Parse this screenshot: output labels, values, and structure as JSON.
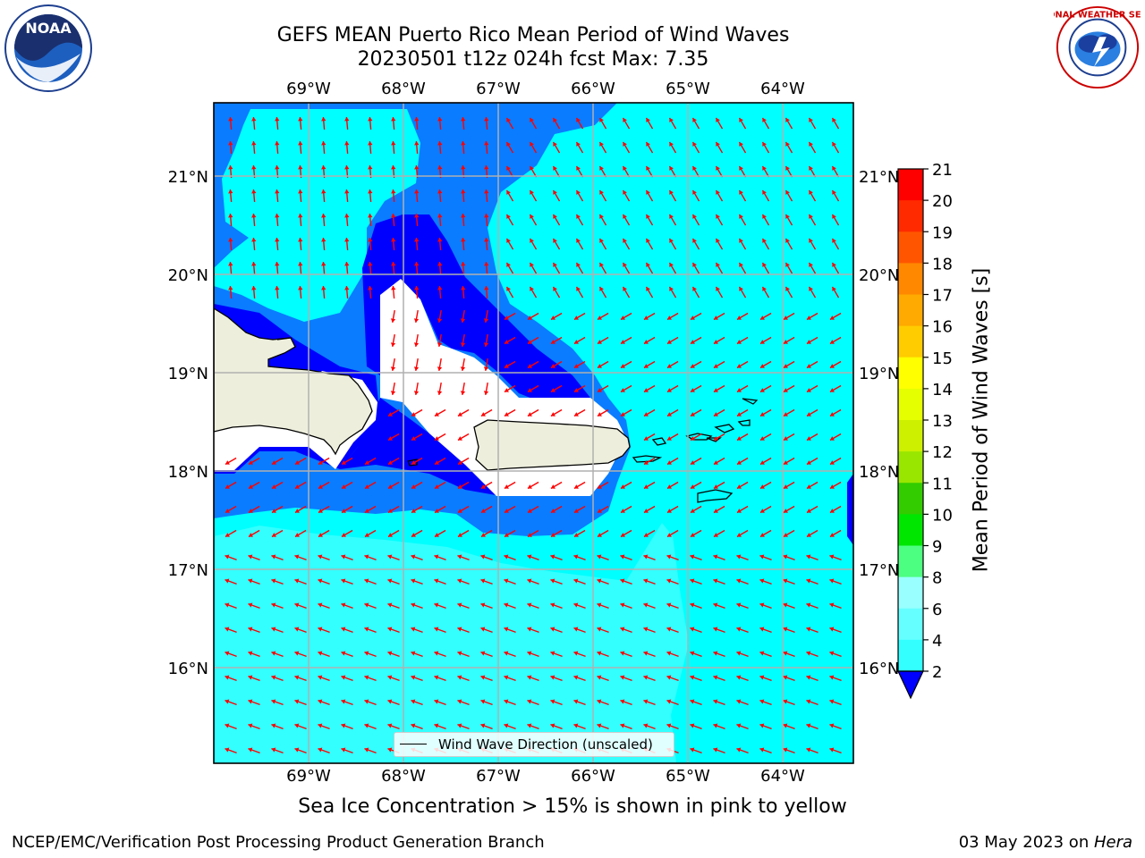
{
  "title": {
    "line1": "GEFS MEAN Puerto Rico Mean Period of Wind Waves",
    "line2": "20230501 t12z 024h fcst   Max: 7.35"
  },
  "logos": {
    "left": "NOAA",
    "right": "NATIONAL WEATHER SERVICE"
  },
  "map": {
    "lon_ticks": [
      "69°W",
      "68°W",
      "67°W",
      "66°W",
      "65°W",
      "64°W"
    ],
    "lat_ticks": [
      "21°N",
      "20°N",
      "19°N",
      "18°N",
      "17°N",
      "16°N"
    ],
    "legend_label": "Wind Wave Direction (unscaled)",
    "arrow_color": "#ff0000"
  },
  "colorbar": {
    "label": "Mean Period of Wind Waves [s]",
    "ticks": [
      "2",
      "4",
      "6",
      "8",
      "9",
      "10",
      "11",
      "12",
      "13",
      "14",
      "15",
      "16",
      "17",
      "18",
      "19",
      "20",
      "21"
    ],
    "colors": [
      "#0a7cff",
      "#00ffff",
      "#33ffff",
      "#66ffff",
      "#99ffff",
      "#4dff80",
      "#00e600",
      "#32cc00",
      "#99e600",
      "#ccf000",
      "#e6ff00",
      "#ffff00",
      "#ffcc00",
      "#ffaa00",
      "#ff8800",
      "#ff5500",
      "#ff2a00",
      "#ff0000"
    ],
    "extend_color": "#0000ff"
  },
  "sea_ice_note": "Sea Ice Concentration > 15% is shown in pink to yellow",
  "footer": {
    "left": "NCEP/EMC/Verification Post Processing Product Generation Branch",
    "right_prefix": "03 May 2023 on ",
    "right_machine": "Hera"
  }
}
